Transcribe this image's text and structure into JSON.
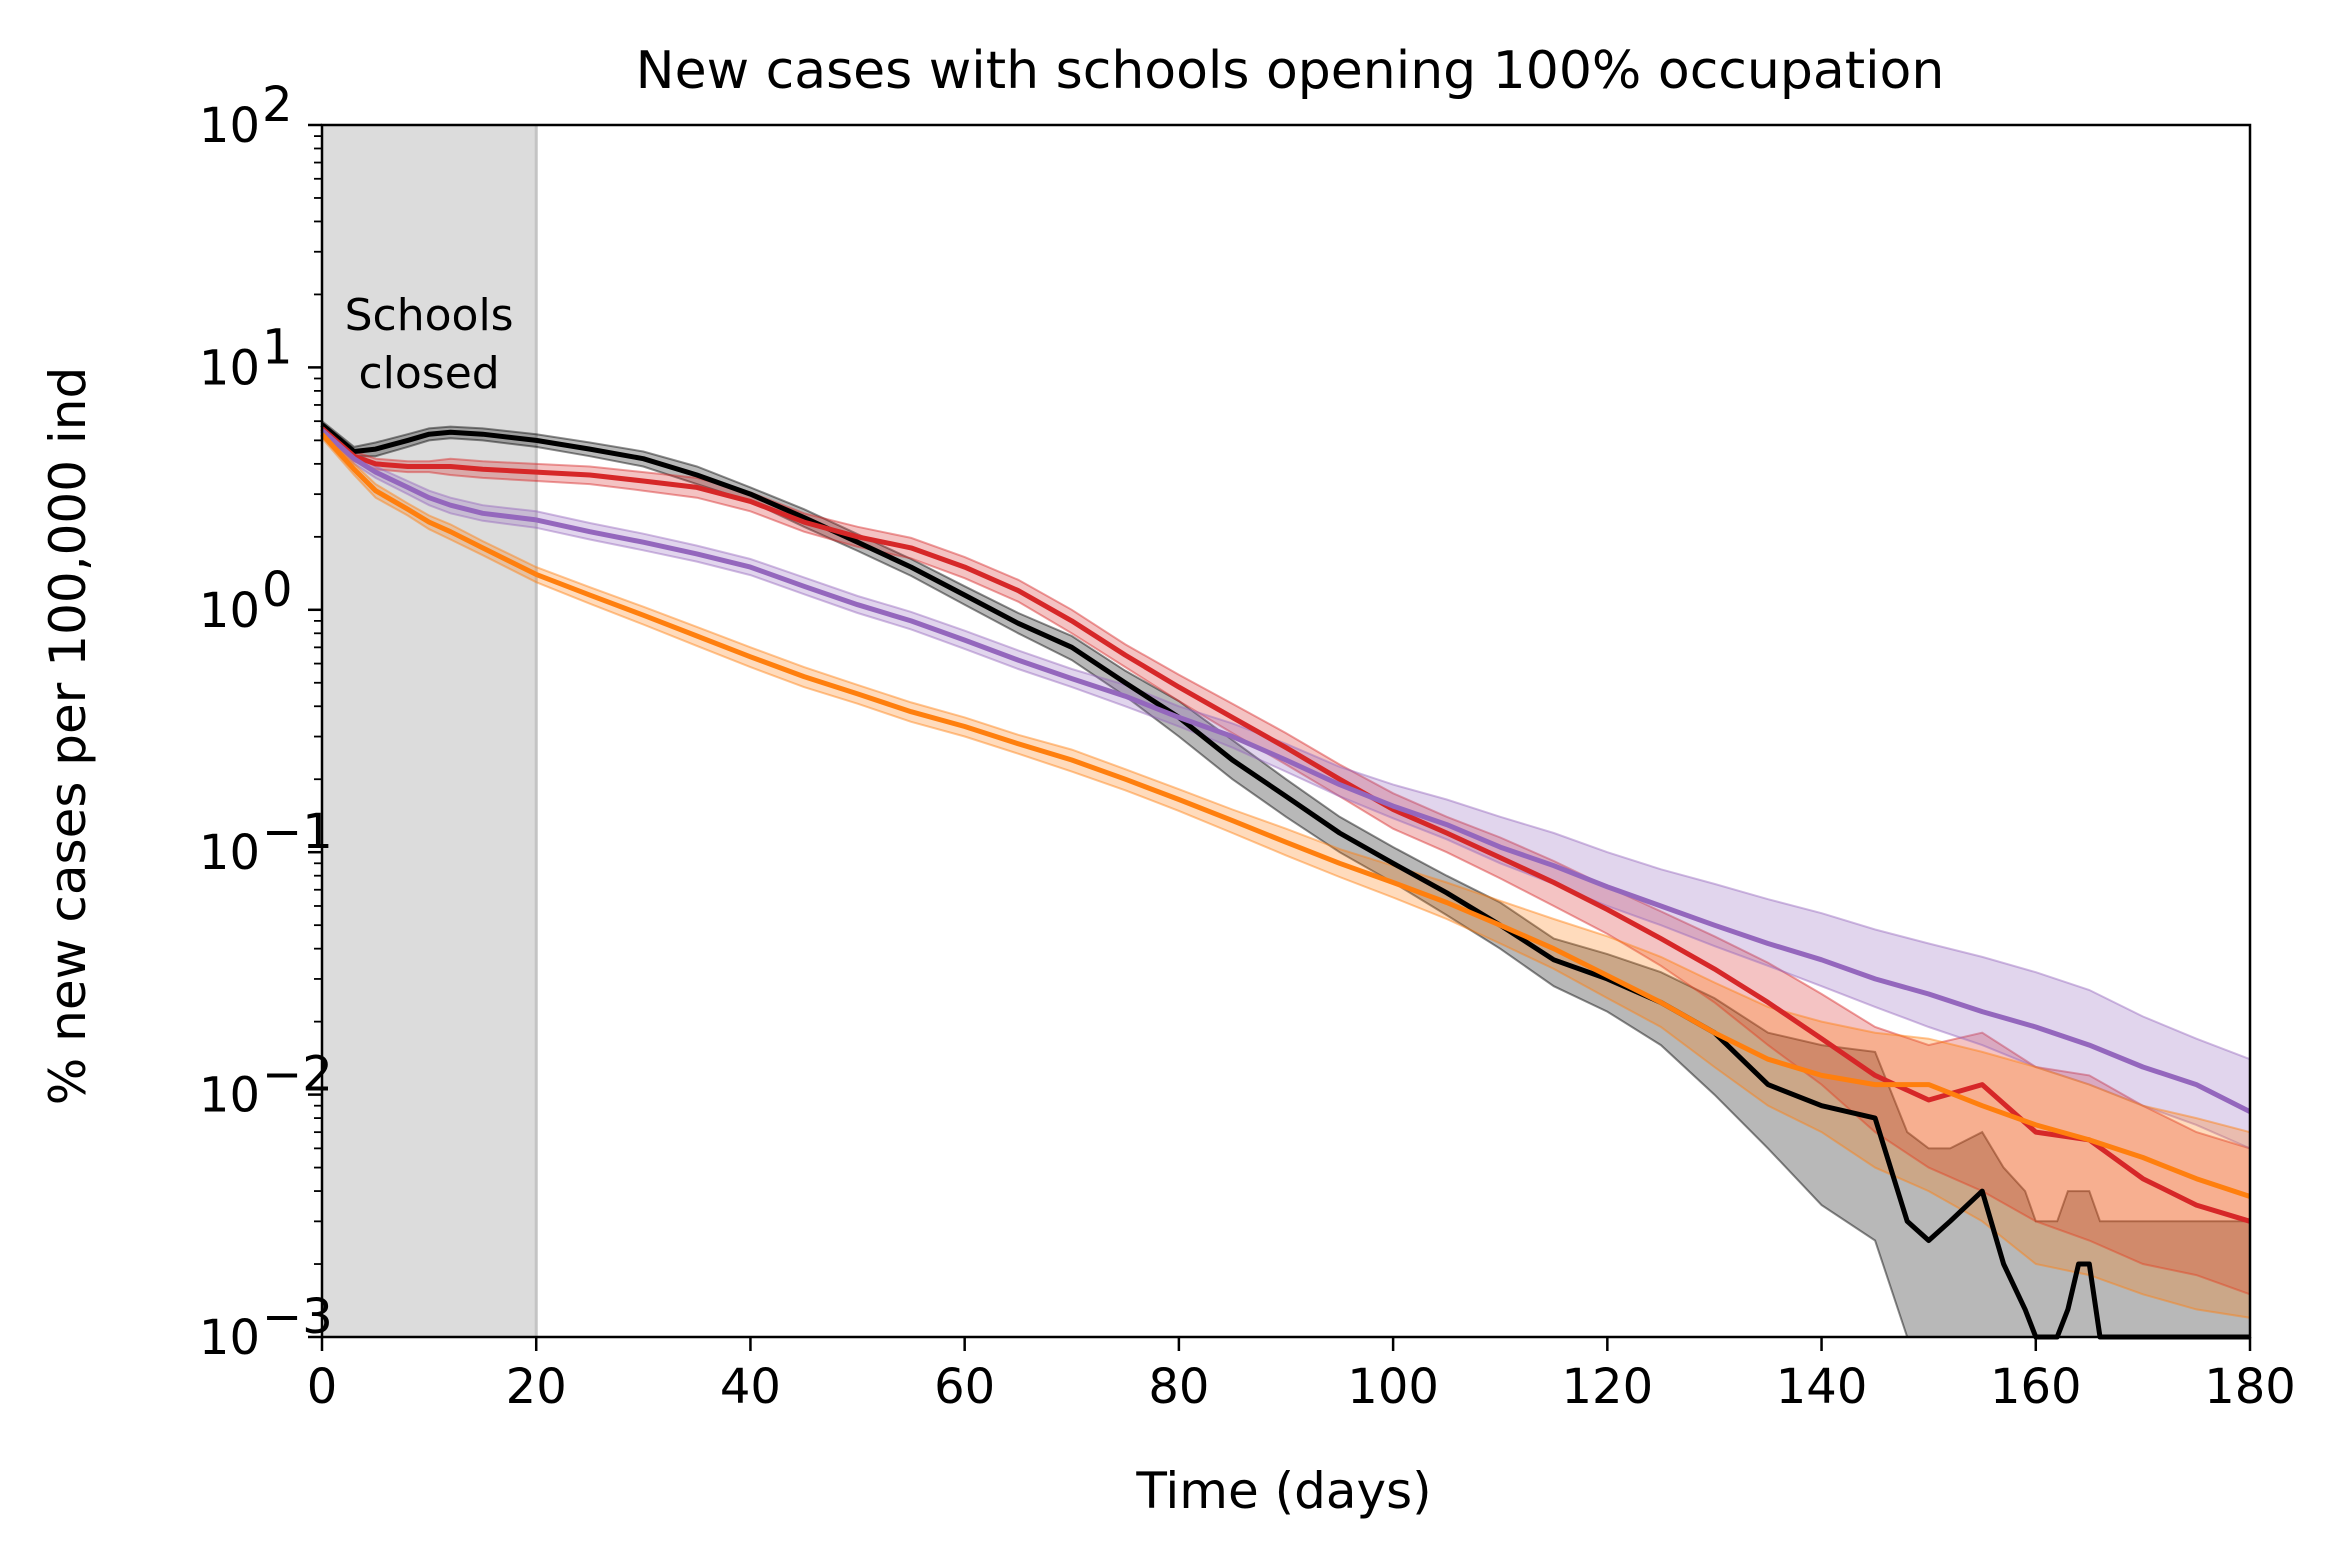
{
  "chart_data": {
    "type": "line",
    "title": "New cases with schools opening 100% occupation",
    "xlabel": "Time (days)",
    "ylabel": "% new cases per 100,000 ind",
    "xlim": [
      0,
      180
    ],
    "ylim": [
      0.001,
      100
    ],
    "yscale": "log",
    "grid": false,
    "legend": "none",
    "xticks": [
      0,
      20,
      40,
      60,
      80,
      100,
      120,
      140,
      160,
      180
    ],
    "yticks": [
      {
        "base": "10",
        "exp": "2",
        "value": 100
      },
      {
        "base": "10",
        "exp": "1",
        "value": 10
      },
      {
        "base": "10",
        "exp": "0",
        "value": 1
      },
      {
        "base": "10",
        "exp": "−1",
        "value": 0.1
      },
      {
        "base": "10",
        "exp": "−2",
        "value": 0.01
      },
      {
        "base": "10",
        "exp": "−3",
        "value": 0.001
      }
    ],
    "shaded_region": {
      "x": [
        0,
        20
      ],
      "color": "#dcdcdc",
      "label_line1": "Schools",
      "label_line2": "closed"
    },
    "series": [
      {
        "color": "#000000",
        "x": [
          0,
          3,
          5,
          8,
          10,
          12,
          15,
          20,
          25,
          30,
          35,
          40,
          45,
          50,
          55,
          60,
          65,
          70,
          75,
          80,
          85,
          90,
          95,
          100,
          105,
          110,
          115,
          120,
          125,
          130,
          135,
          140,
          145,
          148,
          150,
          152,
          155,
          157,
          159,
          160,
          162,
          163,
          164,
          165,
          166,
          168,
          170,
          175,
          180
        ],
        "y": [
          5.8,
          4.5,
          4.6,
          5.0,
          5.3,
          5.4,
          5.3,
          5.0,
          4.6,
          4.2,
          3.6,
          3.0,
          2.4,
          1.9,
          1.5,
          1.15,
          0.88,
          0.7,
          0.5,
          0.36,
          0.24,
          0.17,
          0.12,
          0.09,
          0.068,
          0.05,
          0.036,
          0.03,
          0.024,
          0.018,
          0.011,
          0.009,
          0.008,
          0.003,
          0.0025,
          0.003,
          0.004,
          0.002,
          0.0013,
          0.001,
          0.001,
          0.0013,
          0.002,
          0.002,
          0.001,
          0.001,
          0.001,
          0.001,
          0.001
        ],
        "band_lower": [
          5.6,
          4.3,
          4.3,
          4.7,
          5.0,
          5.1,
          5.0,
          4.7,
          4.3,
          3.9,
          3.3,
          2.8,
          2.2,
          1.75,
          1.38,
          1.05,
          0.8,
          0.62,
          0.44,
          0.3,
          0.2,
          0.14,
          0.1,
          0.075,
          0.055,
          0.04,
          0.028,
          0.022,
          0.016,
          0.01,
          0.006,
          0.0035,
          0.0025,
          0.001,
          0.001,
          0.001,
          0.001,
          0.001,
          0.001,
          0.001,
          0.001,
          0.001,
          0.001,
          0.001,
          0.001,
          0.001,
          0.001,
          0.001,
          0.001
        ],
        "band_upper": [
          6.0,
          4.7,
          4.9,
          5.3,
          5.6,
          5.7,
          5.6,
          5.3,
          4.9,
          4.5,
          3.9,
          3.2,
          2.6,
          2.05,
          1.62,
          1.25,
          0.97,
          0.78,
          0.56,
          0.42,
          0.29,
          0.2,
          0.14,
          0.105,
          0.08,
          0.062,
          0.044,
          0.038,
          0.032,
          0.025,
          0.018,
          0.016,
          0.015,
          0.007,
          0.006,
          0.006,
          0.007,
          0.005,
          0.004,
          0.003,
          0.003,
          0.004,
          0.004,
          0.004,
          0.003,
          0.003,
          0.003,
          0.003,
          0.003
        ]
      },
      {
        "color": "#d62728",
        "x": [
          0,
          3,
          5,
          8,
          10,
          12,
          15,
          20,
          25,
          30,
          35,
          40,
          45,
          50,
          55,
          60,
          65,
          70,
          75,
          80,
          85,
          90,
          95,
          100,
          105,
          110,
          115,
          120,
          125,
          130,
          135,
          140,
          145,
          150,
          155,
          160,
          165,
          170,
          175,
          180
        ],
        "y": [
          5.6,
          4.3,
          4.0,
          3.9,
          3.9,
          3.9,
          3.8,
          3.7,
          3.6,
          3.4,
          3.2,
          2.8,
          2.3,
          2.0,
          1.8,
          1.5,
          1.2,
          0.9,
          0.65,
          0.48,
          0.36,
          0.27,
          0.2,
          0.15,
          0.12,
          0.095,
          0.075,
          0.058,
          0.044,
          0.033,
          0.024,
          0.017,
          0.012,
          0.0095,
          0.011,
          0.007,
          0.0065,
          0.0045,
          0.0035,
          0.003
        ],
        "band_lower": [
          5.4,
          4.1,
          3.8,
          3.7,
          3.7,
          3.6,
          3.5,
          3.4,
          3.3,
          3.1,
          2.9,
          2.55,
          2.1,
          1.82,
          1.63,
          1.35,
          1.08,
          0.8,
          0.58,
          0.42,
          0.31,
          0.23,
          0.17,
          0.125,
          0.1,
          0.078,
          0.06,
          0.046,
          0.034,
          0.024,
          0.016,
          0.011,
          0.007,
          0.005,
          0.004,
          0.003,
          0.0025,
          0.002,
          0.0018,
          0.0015
        ],
        "band_upper": [
          5.8,
          4.5,
          4.2,
          4.1,
          4.1,
          4.2,
          4.1,
          4.0,
          3.9,
          3.7,
          3.5,
          3.05,
          2.5,
          2.2,
          1.98,
          1.65,
          1.33,
          1.0,
          0.72,
          0.54,
          0.41,
          0.31,
          0.23,
          0.175,
          0.14,
          0.115,
          0.092,
          0.072,
          0.057,
          0.045,
          0.035,
          0.026,
          0.019,
          0.016,
          0.018,
          0.013,
          0.012,
          0.009,
          0.007,
          0.006
        ]
      },
      {
        "color": "#9467bd",
        "x": [
          0,
          3,
          5,
          8,
          10,
          12,
          15,
          20,
          25,
          30,
          35,
          40,
          45,
          50,
          55,
          60,
          65,
          70,
          75,
          80,
          85,
          90,
          95,
          100,
          105,
          110,
          115,
          120,
          125,
          130,
          135,
          140,
          145,
          150,
          155,
          160,
          165,
          170,
          175,
          180
        ],
        "y": [
          5.5,
          4.2,
          3.7,
          3.2,
          2.9,
          2.7,
          2.5,
          2.35,
          2.1,
          1.9,
          1.7,
          1.5,
          1.25,
          1.05,
          0.9,
          0.75,
          0.62,
          0.52,
          0.44,
          0.36,
          0.3,
          0.24,
          0.19,
          0.155,
          0.13,
          0.105,
          0.088,
          0.072,
          0.06,
          0.05,
          0.042,
          0.036,
          0.03,
          0.026,
          0.022,
          0.019,
          0.016,
          0.013,
          0.011,
          0.0085
        ],
        "band_lower": [
          5.3,
          4.0,
          3.5,
          3.0,
          2.7,
          2.5,
          2.33,
          2.18,
          1.95,
          1.76,
          1.58,
          1.39,
          1.16,
          0.97,
          0.83,
          0.69,
          0.57,
          0.48,
          0.4,
          0.33,
          0.27,
          0.215,
          0.17,
          0.138,
          0.113,
          0.09,
          0.074,
          0.06,
          0.05,
          0.041,
          0.034,
          0.028,
          0.023,
          0.019,
          0.016,
          0.013,
          0.011,
          0.009,
          0.0075,
          0.006
        ],
        "band_upper": [
          5.7,
          4.4,
          3.9,
          3.4,
          3.1,
          2.9,
          2.7,
          2.55,
          2.28,
          2.06,
          1.84,
          1.62,
          1.36,
          1.14,
          0.98,
          0.82,
          0.68,
          0.57,
          0.49,
          0.4,
          0.34,
          0.28,
          0.225,
          0.19,
          0.165,
          0.14,
          0.12,
          0.1,
          0.085,
          0.074,
          0.064,
          0.056,
          0.048,
          0.042,
          0.037,
          0.032,
          0.027,
          0.021,
          0.017,
          0.014
        ]
      },
      {
        "color": "#ff7f0e",
        "x": [
          0,
          3,
          5,
          8,
          10,
          12,
          15,
          20,
          25,
          30,
          35,
          40,
          45,
          50,
          55,
          60,
          65,
          70,
          75,
          80,
          85,
          90,
          95,
          100,
          105,
          110,
          115,
          120,
          125,
          130,
          135,
          140,
          145,
          150,
          155,
          160,
          165,
          170,
          175,
          180
        ],
        "y": [
          5.3,
          3.8,
          3.1,
          2.6,
          2.3,
          2.1,
          1.8,
          1.4,
          1.15,
          0.95,
          0.78,
          0.64,
          0.53,
          0.45,
          0.38,
          0.33,
          0.28,
          0.24,
          0.2,
          0.165,
          0.135,
          0.11,
          0.09,
          0.075,
          0.062,
          0.05,
          0.04,
          0.031,
          0.024,
          0.018,
          0.014,
          0.012,
          0.011,
          0.011,
          0.009,
          0.0075,
          0.0065,
          0.0055,
          0.0045,
          0.0038
        ],
        "band_lower": [
          5.1,
          3.6,
          2.9,
          2.45,
          2.15,
          1.95,
          1.68,
          1.3,
          1.06,
          0.87,
          0.71,
          0.58,
          0.48,
          0.41,
          0.345,
          0.3,
          0.255,
          0.215,
          0.18,
          0.148,
          0.12,
          0.097,
          0.079,
          0.065,
          0.053,
          0.042,
          0.033,
          0.025,
          0.019,
          0.013,
          0.009,
          0.007,
          0.005,
          0.004,
          0.003,
          0.002,
          0.0018,
          0.0015,
          0.0013,
          0.0012
        ],
        "band_upper": [
          5.5,
          4.0,
          3.3,
          2.75,
          2.45,
          2.25,
          1.92,
          1.5,
          1.24,
          1.03,
          0.85,
          0.7,
          0.58,
          0.49,
          0.415,
          0.36,
          0.305,
          0.265,
          0.22,
          0.182,
          0.15,
          0.125,
          0.103,
          0.088,
          0.075,
          0.063,
          0.053,
          0.045,
          0.037,
          0.029,
          0.023,
          0.02,
          0.018,
          0.017,
          0.015,
          0.013,
          0.011,
          0.009,
          0.008,
          0.007
        ]
      }
    ]
  }
}
